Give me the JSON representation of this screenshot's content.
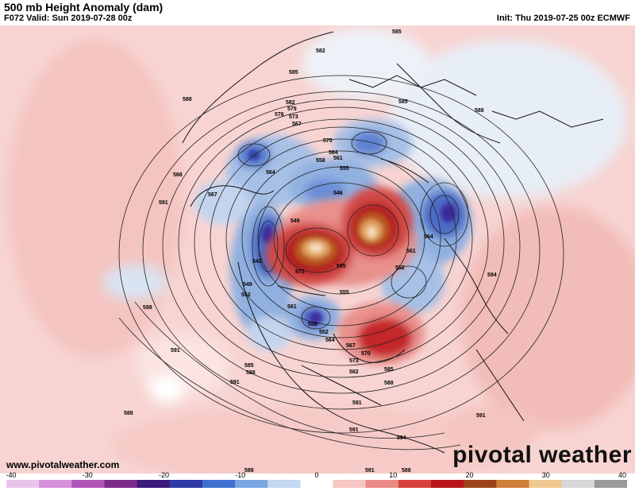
{
  "header": {
    "title": "500 mb Height Anomaly (dam)",
    "valid": "F072 Valid: Sun 2019-07-28 00z",
    "init": "Init: Thu 2019-07-25 00z ECMWF"
  },
  "footer": {
    "site": "www.pivotalweather.com",
    "brand": "pivotal weather"
  },
  "colorbar": {
    "ticks": [
      "-40",
      "-30",
      "-20",
      "-10",
      "0",
      "10",
      "20",
      "30",
      "40"
    ],
    "colors": [
      "#e8c4ec",
      "#d690da",
      "#b055b8",
      "#7c2a8a",
      "#3a1a7a",
      "#2d3aa8",
      "#3f6fd0",
      "#7aa7e2",
      "#c4d8f0",
      "#ffffff",
      "#f6c6c4",
      "#ec8a86",
      "#d8403a",
      "#b8141a",
      "#9a4418",
      "#d0803a",
      "#f0c890",
      "#d8d8d8",
      "#9a9a9a"
    ]
  },
  "contour_labels": [
    {
      "text": "585"
    },
    {
      "text": "582"
    },
    {
      "text": "585"
    },
    {
      "text": "588"
    },
    {
      "text": "582"
    },
    {
      "text": "579"
    },
    {
      "text": "576"
    },
    {
      "text": "573"
    },
    {
      "text": "567"
    },
    {
      "text": "570"
    },
    {
      "text": "564"
    },
    {
      "text": "561"
    },
    {
      "text": "558"
    },
    {
      "text": "555"
    },
    {
      "text": "564"
    },
    {
      "text": "546"
    },
    {
      "text": "567"
    },
    {
      "text": "549"
    },
    {
      "text": "543"
    },
    {
      "text": "549"
    },
    {
      "text": "552"
    },
    {
      "text": "555"
    },
    {
      "text": "573"
    },
    {
      "text": "561"
    },
    {
      "text": "552"
    },
    {
      "text": "564"
    },
    {
      "text": "561"
    },
    {
      "text": "555"
    },
    {
      "text": "588"
    },
    {
      "text": "588"
    },
    {
      "text": "591"
    },
    {
      "text": "591"
    },
    {
      "text": "588"
    },
    {
      "text": "585"
    },
    {
      "text": "588"
    },
    {
      "text": "591"
    },
    {
      "text": "564"
    },
    {
      "text": "567"
    },
    {
      "text": "570"
    },
    {
      "text": "573"
    },
    {
      "text": "582"
    },
    {
      "text": "585"
    },
    {
      "text": "588"
    },
    {
      "text": "591"
    },
    {
      "text": "588"
    },
    {
      "text": "591"
    },
    {
      "text": "591"
    },
    {
      "text": "594"
    },
    {
      "text": "594"
    },
    {
      "text": "588"
    },
    {
      "text": "591"
    },
    {
      "text": "588"
    },
    {
      "text": "585"
    },
    {
      "text": "552"
    },
    {
      "text": "558"
    }
  ]
}
